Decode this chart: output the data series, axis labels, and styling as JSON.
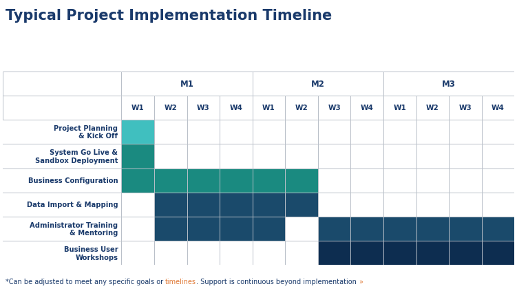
{
  "title": "Typical Project Implementation Timeline",
  "title_color": "#1a3a6b",
  "title_fontsize": 15,
  "green_line_color": "#8dc63f",
  "footnote_parts": [
    {
      "text": "*Can be adjusted to meet any specific goals or ",
      "color": "#1a3a6b"
    },
    {
      "text": "timelines",
      "color": "#e07b39"
    },
    {
      "text": ". Support is continuous beyond implementation ",
      "color": "#1a3a6b"
    },
    {
      "text": "»",
      "color": "#e07b39"
    }
  ],
  "months": [
    "M1",
    "M2",
    "M3"
  ],
  "weeks": [
    "W1",
    "W2",
    "W3",
    "W4"
  ],
  "row_labels": [
    "Project Planning\n& Kick Off",
    "System Go Live &\nSandbox Deployment",
    "Business Configuration",
    "Data Import & Mapping",
    "Administrator Training\n& Mentoring",
    "Business User\nWorkshops"
  ],
  "label_color": "#1a3a6b",
  "header_color": "#1a3a6b",
  "grid_line_color": "#b8bfc8",
  "color_teal_light": "#40bfbf",
  "color_teal_dark": "#1a8a80",
  "color_navy_mid": "#1a4a6b",
  "color_navy_dark": "#0d2d50",
  "bg_color": "#ffffff",
  "row_colors": [
    "#40bfbf",
    "#1a8a80",
    "#1a8a80",
    "#1a4a6b",
    "#1a4a6b",
    "#0d2d50"
  ],
  "fills": [
    [
      [
        0,
        0
      ]
    ],
    [
      [
        0,
        0
      ]
    ],
    [
      [
        0,
        0
      ],
      [
        0,
        1
      ],
      [
        0,
        2
      ],
      [
        0,
        3
      ],
      [
        1,
        0
      ],
      [
        1,
        1
      ]
    ],
    [
      [
        0,
        1
      ],
      [
        0,
        2
      ],
      [
        0,
        3
      ],
      [
        1,
        0
      ],
      [
        1,
        1
      ]
    ],
    [
      [
        0,
        1
      ],
      [
        0,
        2
      ],
      [
        0,
        3
      ],
      [
        1,
        0
      ],
      [
        1,
        2
      ],
      [
        1,
        3
      ],
      [
        2,
        0
      ],
      [
        2,
        1
      ],
      [
        2,
        2
      ],
      [
        2,
        3
      ]
    ],
    [
      [
        1,
        2
      ],
      [
        1,
        3
      ],
      [
        2,
        0
      ],
      [
        2,
        1
      ],
      [
        2,
        2
      ],
      [
        2,
        3
      ]
    ]
  ]
}
